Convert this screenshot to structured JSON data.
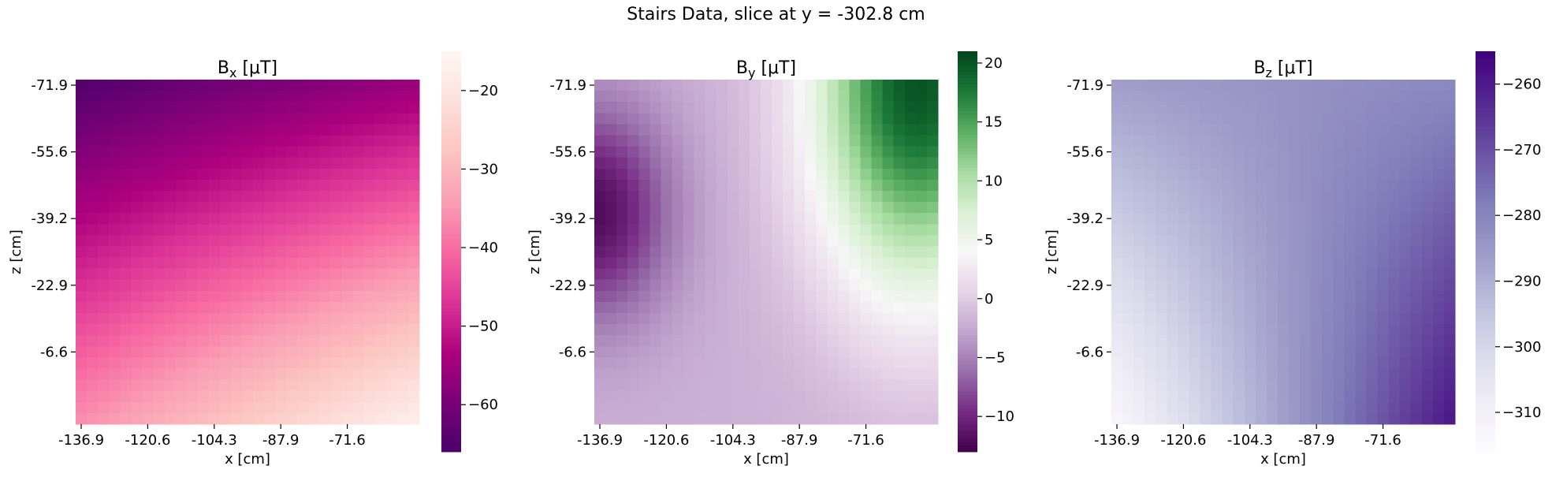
{
  "figure": {
    "suptitle": "Stairs Data, slice at y = -302.8 cm"
  },
  "chart_data": [
    {
      "type": "heatmap",
      "title": "B",
      "title_sub": "x",
      "title_unit": " [μT]",
      "xlabel": "x [cm]",
      "ylabel": "z [cm]",
      "xticks": [
        "-136.9",
        "-120.6",
        "-104.3",
        "-87.9",
        "-71.6"
      ],
      "yticks": [
        "-71.9",
        "-55.6",
        "-39.2",
        "-22.9",
        "-6.6"
      ],
      "colormap": "RdPu",
      "colormap_reversed": true,
      "vmin": -66,
      "vmax": -15,
      "colorbar_ticks": [
        -20,
        -30,
        -40,
        -50,
        -60
      ],
      "grid_size": [
        31,
        31
      ],
      "field": {
        "form": "linear-gradient",
        "corner_values": {
          "top_left": -65,
          "top_right": -56,
          "bottom_left": -36,
          "bottom_right": -17
        }
      }
    },
    {
      "type": "heatmap",
      "title": "B",
      "title_sub": "y",
      "title_unit": " [μT]",
      "xlabel": "x [cm]",
      "ylabel": "z [cm]",
      "xticks": [
        "-136.9",
        "-120.6",
        "-104.3",
        "-87.9",
        "-71.6"
      ],
      "yticks": [
        "-71.9",
        "-55.6",
        "-39.2",
        "-22.9",
        "-6.6"
      ],
      "colormap": "PRGn",
      "colormap_reversed": false,
      "vmin": -13,
      "vmax": 21,
      "colorbar_ticks": [
        20,
        15,
        10,
        5,
        0,
        -5,
        -10
      ],
      "grid_size": [
        31,
        31
      ],
      "field": {
        "form": "saddle",
        "min_value": -12,
        "min_at": [
          "-136.9",
          "-39.2"
        ],
        "max_value": 20,
        "max_at": [
          "-57",
          "-71.9"
        ],
        "background_value": -2
      }
    },
    {
      "type": "heatmap",
      "title": "B",
      "title_sub": "z",
      "title_unit": " [μT]",
      "xlabel": "x [cm]",
      "ylabel": "z [cm]",
      "xticks": [
        "-136.9",
        "-120.6",
        "-104.3",
        "-87.9",
        "-71.6"
      ],
      "yticks": [
        "-71.9",
        "-55.6",
        "-39.2",
        "-22.9",
        "-6.6"
      ],
      "colormap": "Purples",
      "colormap_reversed": false,
      "vmin": -316,
      "vmax": -255,
      "colorbar_ticks": [
        -260,
        -270,
        -280,
        -290,
        -300,
        -310
      ],
      "grid_size": [
        31,
        31
      ],
      "field": {
        "form": "linear-gradient",
        "corner_values": {
          "top_left": -286,
          "top_right": -281,
          "bottom_left": -314,
          "bottom_right": -259
        }
      }
    }
  ]
}
